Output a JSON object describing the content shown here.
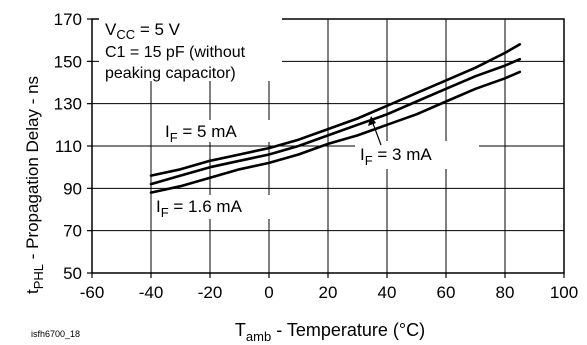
{
  "chart_data": {
    "type": "line",
    "xlabel_main": "T",
    "xlabel_sub": "amb",
    "xlabel_rest": " - Temperature (°C)",
    "ylabel_main": "t",
    "ylabel_sub": "PHL",
    "ylabel_rest": " - Propagation Delay - ns",
    "xlim": [
      -60,
      100
    ],
    "ylim": [
      50,
      170
    ],
    "xticks": [
      "-60",
      "-40",
      "-20",
      "0",
      "20",
      "40",
      "60",
      "80",
      "100"
    ],
    "yticks": [
      "50",
      "70",
      "90",
      "110",
      "130",
      "150",
      "170"
    ],
    "grid": true,
    "conditions": {
      "vcc_main": "V",
      "vcc_sub": "CC",
      "vcc_rest": " = 5 V",
      "c1_line1": "C1 = 15 pF (without",
      "c1_line2": "peaking capacitor)"
    },
    "series": [
      {
        "name": "I_F = 5 mA",
        "label_main": "I",
        "label_sub": "F",
        "label_rest": " = 5 mA",
        "x": [
          -40,
          -30,
          -20,
          -10,
          0,
          10,
          20,
          30,
          40,
          50,
          60,
          70,
          80,
          85
        ],
        "y": [
          96,
          99,
          103,
          106,
          109,
          113,
          118,
          123,
          129,
          135,
          141,
          147,
          154,
          158
        ]
      },
      {
        "name": "I_F = 3 mA",
        "label_main": "I",
        "label_sub": "F",
        "label_rest": " = 3 mA",
        "x": [
          -40,
          -30,
          -20,
          -10,
          0,
          10,
          20,
          30,
          40,
          50,
          60,
          70,
          80,
          85
        ],
        "y": [
          92,
          96,
          100,
          103,
          106,
          110,
          115,
          120,
          125,
          131,
          137,
          143,
          148,
          151
        ]
      },
      {
        "name": "I_F = 1.6 mA",
        "label_main": "I",
        "label_sub": "F",
        "label_rest": " = 1.6 mA",
        "x": [
          -40,
          -30,
          -20,
          -10,
          0,
          10,
          20,
          30,
          40,
          50,
          60,
          70,
          80,
          85
        ],
        "y": [
          88,
          91,
          95,
          99,
          102,
          106,
          111,
          115,
          120,
          125,
          131,
          137,
          142,
          145
        ]
      }
    ]
  },
  "figure_id": "isfh6700_18"
}
